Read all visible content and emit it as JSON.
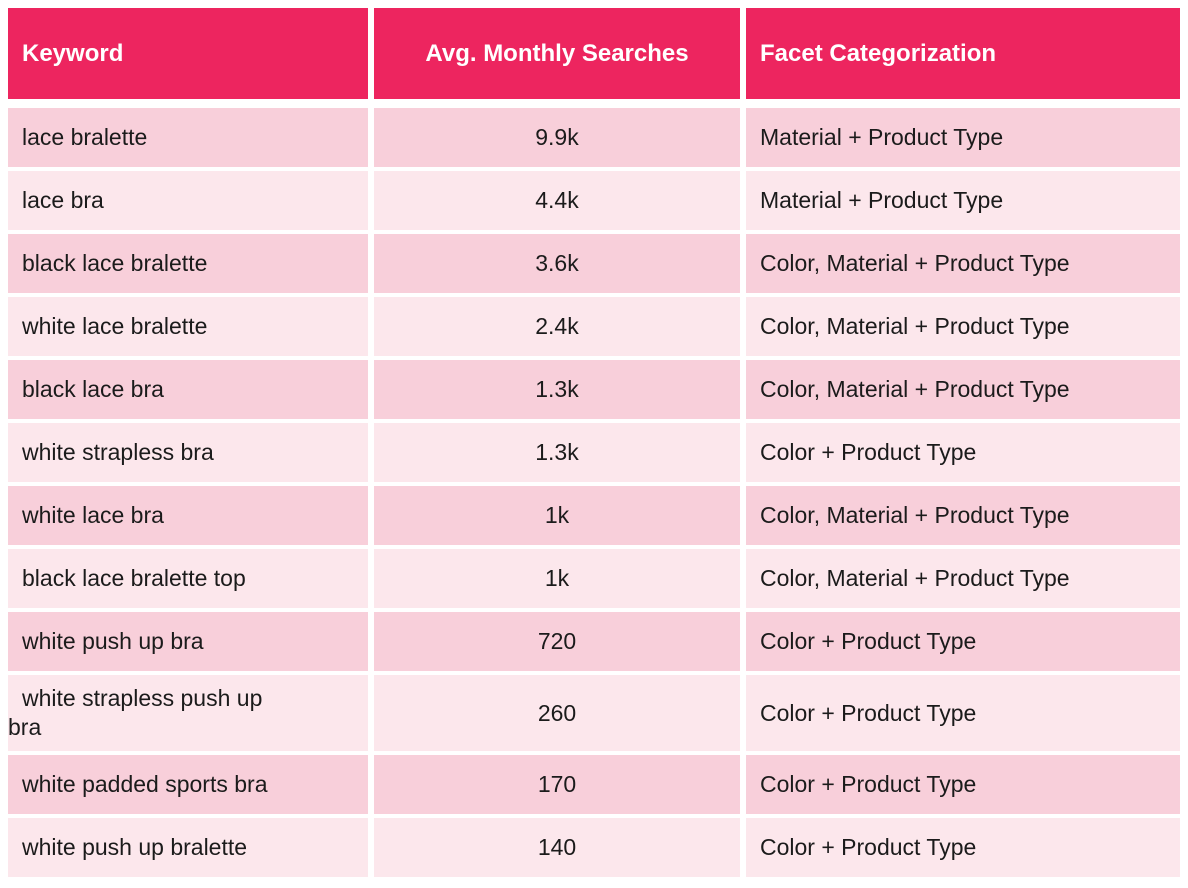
{
  "chart_data": {
    "type": "table",
    "columns": [
      "Keyword",
      "Avg. Monthly Searches",
      "Facet Categorization"
    ],
    "rows": [
      {
        "keyword": "lace bralette",
        "searches": "9.9k",
        "facet": "Material + Product Type"
      },
      {
        "keyword": "lace bra",
        "searches": "4.4k",
        "facet": "Material + Product Type"
      },
      {
        "keyword": "black lace bralette",
        "searches": "3.6k",
        "facet": "Color, Material + Product Type"
      },
      {
        "keyword": "white lace bralette",
        "searches": "2.4k",
        "facet": "Color, Material + Product Type"
      },
      {
        "keyword": "black lace bra",
        "searches": "1.3k",
        "facet": "Color, Material + Product Type"
      },
      {
        "keyword": "white strapless bra",
        "searches": "1.3k",
        "facet": "Color + Product Type"
      },
      {
        "keyword": "white lace bra",
        "searches": "1k",
        "facet": "Color, Material + Product Type"
      },
      {
        "keyword": "black lace bralette top",
        "searches": "1k",
        "facet": "Color, Material + Product Type"
      },
      {
        "keyword": "white push up bra",
        "searches": "720",
        "facet": "Color + Product Type"
      },
      {
        "keyword": "white strapless push up bra",
        "searches": "260",
        "facet": "Color + Product Type"
      },
      {
        "keyword": "white padded sports bra",
        "searches": "170",
        "facet": "Color + Product Type"
      },
      {
        "keyword": "white push up bralette",
        "searches": "140",
        "facet": "Color + Product Type"
      }
    ]
  },
  "colors": {
    "header_bg": "#ED255F",
    "header_text": "#FFFFFF",
    "row_odd_bg": "#F8CFDA",
    "row_even_bg": "#FCE7EC",
    "body_text": "#1B1B1B",
    "gap": "#FFFFFF"
  }
}
